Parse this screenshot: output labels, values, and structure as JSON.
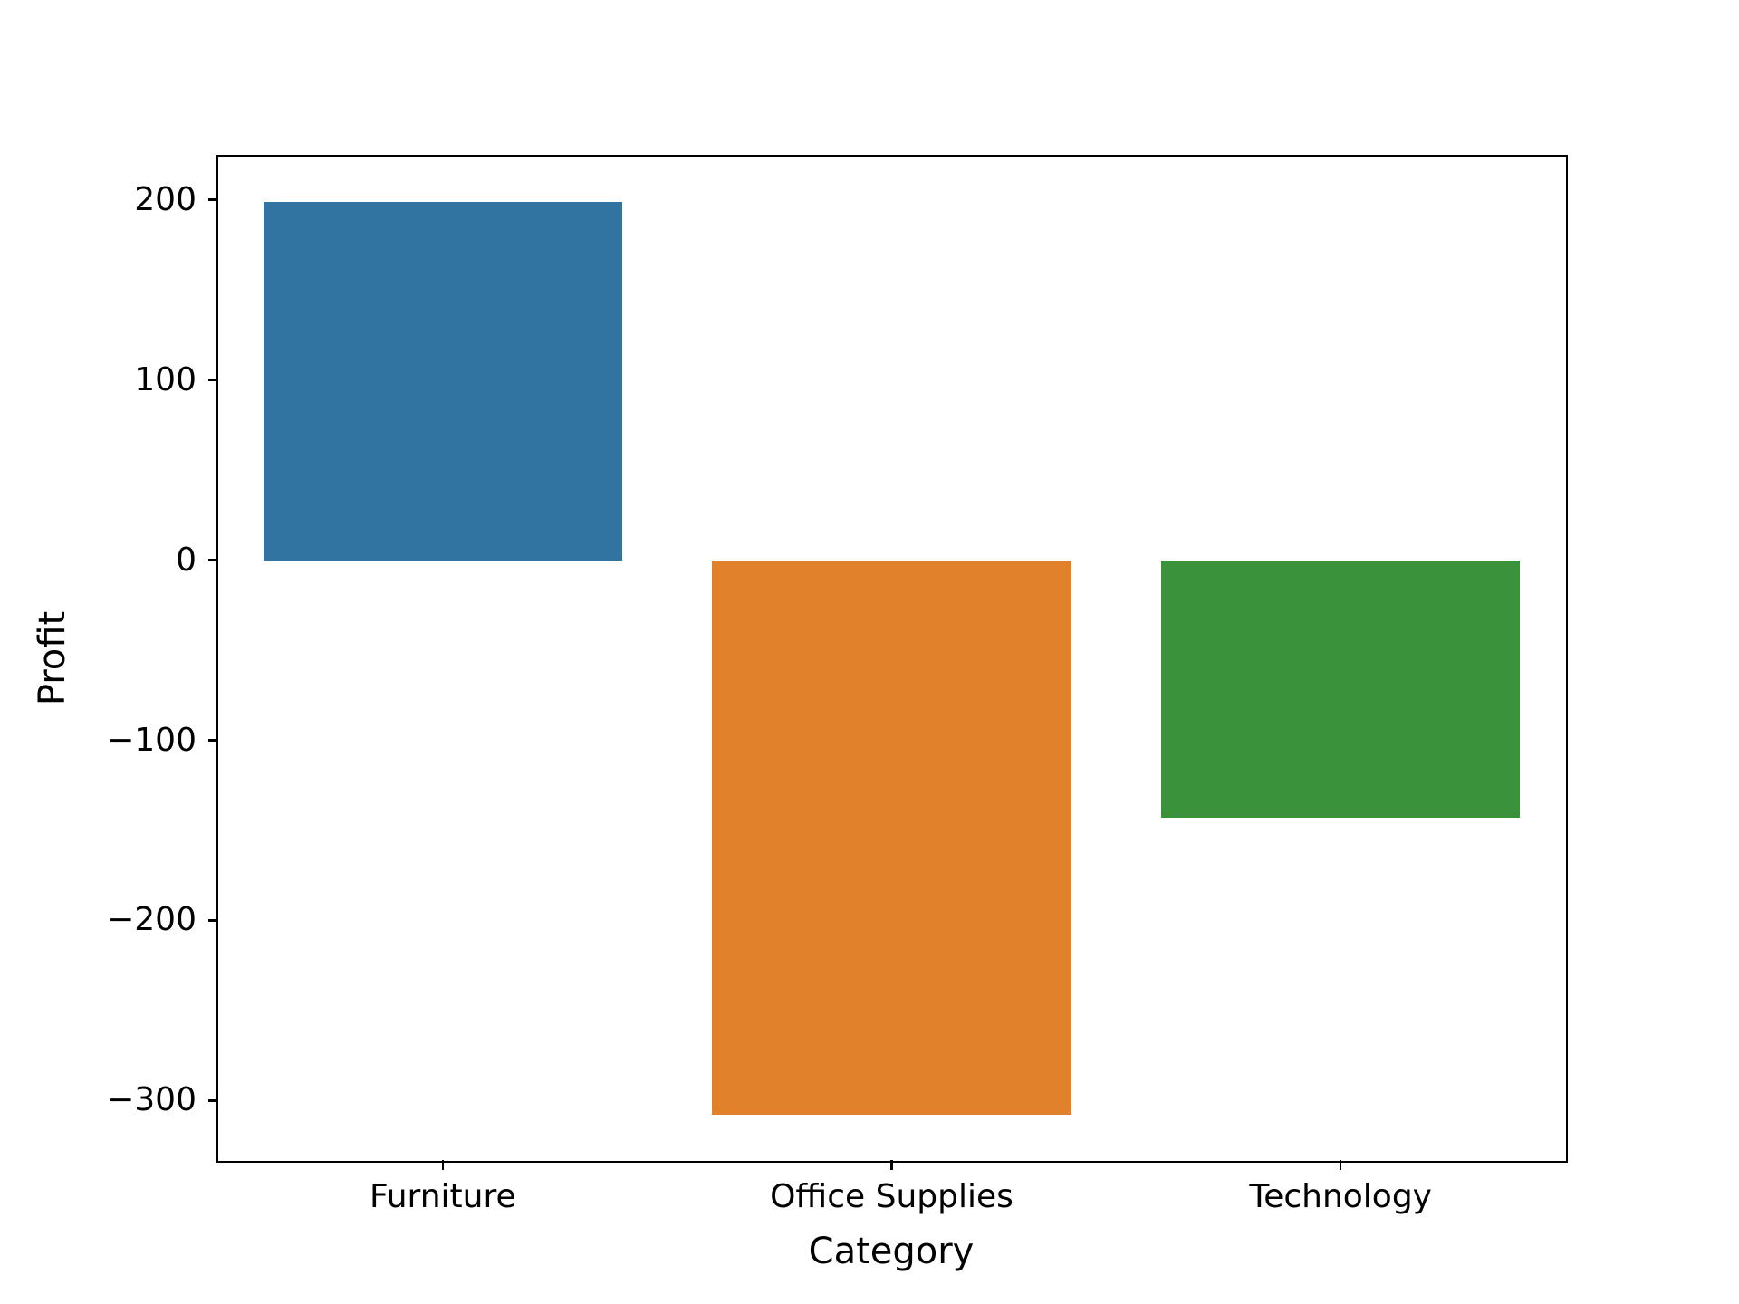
{
  "chart_data": {
    "type": "bar",
    "title": "",
    "xlabel": "Category",
    "ylabel": "Profit",
    "categories": [
      "Furniture",
      "Office Supplies",
      "Technology"
    ],
    "values": [
      199,
      -308,
      -143
    ],
    "bar_colors": [
      "#3274a1",
      "#e1812c",
      "#3a923a"
    ],
    "ylim": [
      -333,
      224
    ],
    "yticks": [
      200,
      100,
      0,
      -100,
      -200,
      -300
    ],
    "ytick_labels": [
      "200",
      "100",
      "0",
      "−100",
      "−200",
      "−300"
    ],
    "bar_width_fraction": 0.8,
    "grid": false,
    "legend": null,
    "background_color": "#ffffff",
    "axis_color": "#000000"
  }
}
